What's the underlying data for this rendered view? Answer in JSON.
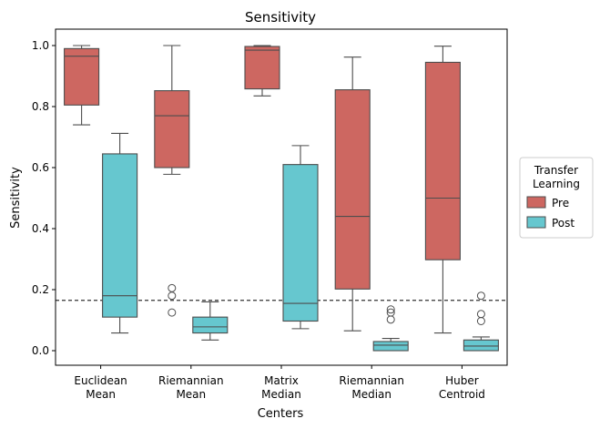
{
  "chart_data": {
    "type": "box",
    "title": "Sensitivity",
    "xlabel": "Centers",
    "ylabel": "Sensitivity",
    "ylim": [
      -0.05,
      1.05
    ],
    "yticks": [
      "0.0",
      "0.2",
      "0.4",
      "0.6",
      "0.8",
      "1.0"
    ],
    "ytick_values": [
      0,
      0.2,
      0.4,
      0.6,
      0.8,
      1.0
    ],
    "reference_line": 0.165,
    "categories": [
      [
        "Euclidean",
        "Mean"
      ],
      [
        "Riemannian",
        "Mean"
      ],
      [
        "Matrix",
        "Median"
      ],
      [
        "Riemannian",
        "Median"
      ],
      [
        "Huber",
        "Centroid"
      ]
    ],
    "legend": {
      "title_lines": [
        "Transfer",
        "Learning"
      ],
      "placement": "right"
    },
    "series": [
      {
        "name": "Pre",
        "color": "#cd6761",
        "boxes": [
          {
            "whislo": 0.74,
            "q1": 0.805,
            "med": 0.965,
            "q3": 0.99,
            "whishi": 1.0,
            "fliers": []
          },
          {
            "whislo": 0.578,
            "q1": 0.6,
            "med": 0.77,
            "q3": 0.852,
            "whishi": 1.0,
            "fliers": [
              0.205,
              0.18,
              0.125
            ]
          },
          {
            "whislo": 0.835,
            "q1": 0.858,
            "med": 0.985,
            "q3": 0.997,
            "whishi": 1.0,
            "fliers": []
          },
          {
            "whislo": 0.065,
            "q1": 0.202,
            "med": 0.44,
            "q3": 0.855,
            "whishi": 0.962,
            "fliers": []
          },
          {
            "whislo": 0.058,
            "q1": 0.298,
            "med": 0.5,
            "q3": 0.945,
            "whishi": 0.998,
            "fliers": []
          }
        ]
      },
      {
        "name": "Post",
        "color": "#66c7cf",
        "boxes": [
          {
            "whislo": 0.058,
            "q1": 0.11,
            "med": 0.18,
            "q3": 0.645,
            "whishi": 0.712,
            "fliers": []
          },
          {
            "whislo": 0.035,
            "q1": 0.058,
            "med": 0.078,
            "q3": 0.11,
            "whishi": 0.16,
            "fliers": []
          },
          {
            "whislo": 0.072,
            "q1": 0.097,
            "med": 0.155,
            "q3": 0.61,
            "whishi": 0.672,
            "fliers": []
          },
          {
            "whislo": 0.0,
            "q1": 0.0,
            "med": 0.018,
            "q3": 0.03,
            "whishi": 0.04,
            "fliers": [
              0.135,
              0.125,
              0.102
            ]
          },
          {
            "whislo": 0.0,
            "q1": 0.0,
            "med": 0.015,
            "q3": 0.035,
            "whishi": 0.045,
            "fliers": [
              0.18,
              0.12,
              0.097
            ]
          }
        ]
      }
    ]
  }
}
